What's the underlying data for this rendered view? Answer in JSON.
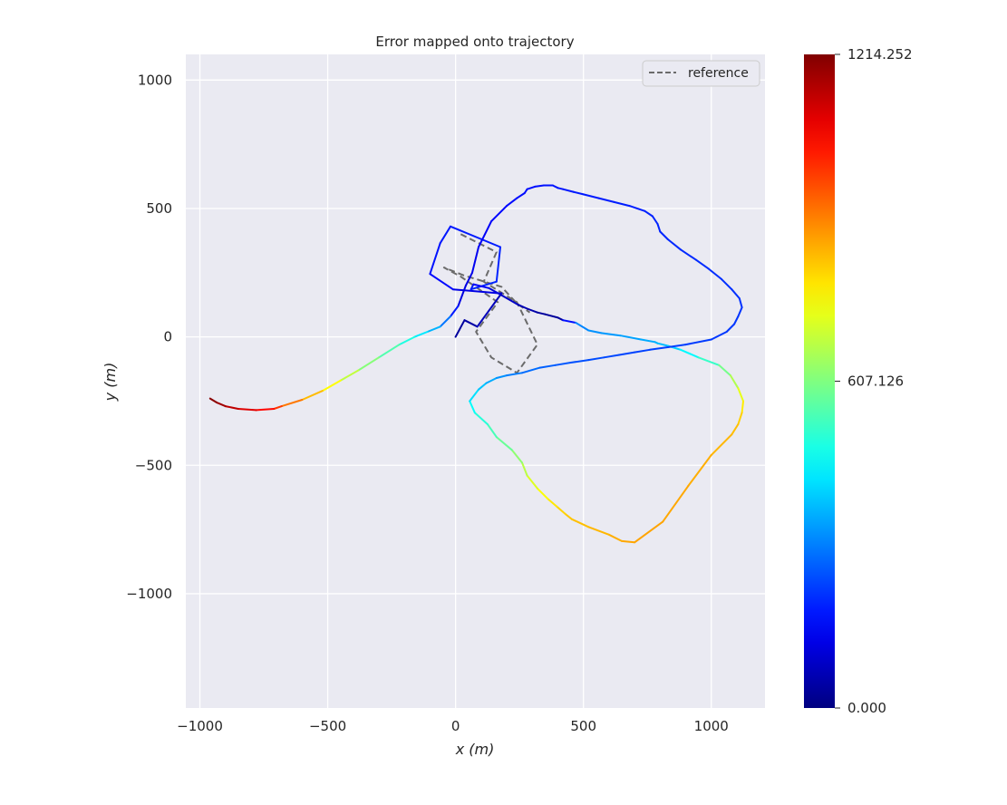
{
  "chart_data": {
    "type": "line",
    "title": "Error mapped onto trajectory",
    "xlabel": "x (m)",
    "ylabel": "y (m)",
    "xlim": [
      -1055,
      1210
    ],
    "ylim": [
      -1445,
      1100
    ],
    "xticks": [
      -1000,
      -500,
      0,
      500,
      1000
    ],
    "xtick_labels": [
      "−1000",
      "−500",
      "0",
      "500",
      "1000"
    ],
    "yticks": [
      1000,
      500,
      0,
      -500,
      -1000
    ],
    "ytick_labels": [
      "1000",
      "500",
      "0",
      "−500",
      "−1000"
    ],
    "grid": true,
    "legend": {
      "placement": "top-right",
      "entries": [
        "reference"
      ]
    },
    "colorbar": {
      "colormap": "jet",
      "min": 0,
      "max": 1214.252,
      "ticks": [
        1214.252,
        607.126,
        0
      ],
      "tick_labels": [
        "1214.252",
        "607.126",
        "0.000"
      ]
    },
    "series": [
      {
        "name": "reference",
        "style": "dashed",
        "color": "#6b6b6b",
        "x": [
          20,
          160,
          110,
          240,
          320,
          240,
          140,
          80,
          165,
          20,
          -45,
          30,
          180,
          240,
          290
        ],
        "y": [
          400,
          330,
          215,
          135,
          -30,
          -140,
          -80,
          20,
          135,
          235,
          270,
          240,
          195,
          130,
          95
        ]
      },
      {
        "name": "",
        "style": "colormapped",
        "x": [
          0,
          35,
          85,
          180,
          170,
          -10,
          -100,
          -60,
          -20,
          175,
          160,
          60,
          70,
          130,
          175,
          245,
          280,
          320,
          350,
          400,
          420,
          470,
          520,
          570,
          645,
          725,
          780,
          790,
          830,
          880,
          950,
          1030,
          1075,
          1105,
          1125,
          1120,
          1105,
          1080,
          1000,
          910,
          810,
          700,
          650,
          600,
          520,
          455,
          430,
          395,
          360,
          320,
          280,
          260,
          220,
          160,
          125,
          75,
          55,
          90,
          120,
          160,
          200,
          260,
          330,
          390,
          450,
          520,
          580,
          640,
          700,
          760,
          830,
          900,
          1000,
          1060,
          1090,
          1105,
          1120,
          1110,
          1080,
          1040,
          990,
          940,
          880,
          830,
          800,
          790,
          770,
          740,
          680,
          620,
          560,
          500,
          460,
          420,
          400,
          380,
          345,
          310,
          280,
          270,
          240,
          200,
          140,
          90,
          65,
          40,
          10,
          -20,
          -60,
          -110,
          -160,
          -220,
          -300,
          -380,
          -450,
          -520,
          -600,
          -680,
          -710,
          -780,
          -850,
          -900,
          -935,
          -960
        ],
        "y": [
          0,
          65,
          40,
          170,
          170,
          185,
          245,
          365,
          430,
          350,
          215,
          185,
          205,
          190,
          165,
          125,
          110,
          95,
          88,
          75,
          65,
          55,
          25,
          15,
          5,
          -10,
          -20,
          -25,
          -35,
          -50,
          -80,
          -110,
          -150,
          -200,
          -250,
          -295,
          -340,
          -380,
          -460,
          -580,
          -720,
          -800,
          -795,
          -770,
          -740,
          -710,
          -690,
          -660,
          -630,
          -590,
          -540,
          -490,
          -440,
          -390,
          -340,
          -295,
          -250,
          -205,
          -180,
          -160,
          -150,
          -140,
          -120,
          -110,
          -100,
          -90,
          -80,
          -70,
          -60,
          -50,
          -40,
          -30,
          -10,
          20,
          50,
          80,
          115,
          150,
          185,
          225,
          265,
          300,
          340,
          380,
          410,
          440,
          470,
          490,
          510,
          525,
          540,
          555,
          565,
          575,
          580,
          590,
          590,
          585,
          575,
          560,
          540,
          510,
          450,
          350,
          250,
          200,
          120,
          80,
          40,
          20,
          0,
          -30,
          -80,
          -130,
          -170,
          -210,
          -245,
          -270,
          -280,
          -285,
          -280,
          -270,
          -255,
          -240
        ],
        "error": [
          40,
          30,
          60,
          80,
          90,
          150,
          170,
          175,
          180,
          185,
          200,
          190,
          170,
          120,
          100,
          70,
          60,
          40,
          35,
          30,
          35,
          300,
          320,
          330,
          340,
          350,
          360,
          370,
          380,
          420,
          480,
          560,
          630,
          700,
          760,
          800,
          830,
          840,
          850,
          860,
          865,
          870,
          860,
          850,
          840,
          830,
          820,
          800,
          770,
          740,
          700,
          650,
          600,
          560,
          520,
          480,
          440,
          400,
          370,
          340,
          310,
          290,
          270,
          260,
          250,
          245,
          240,
          235,
          230,
          228,
          226,
          224,
          220,
          218,
          216,
          214,
          212,
          210,
          208,
          206,
          204,
          202,
          200,
          198,
          196,
          194,
          192,
          190,
          188,
          186,
          184,
          182,
          180,
          178,
          176,
          174,
          172,
          170,
          168,
          166,
          164,
          162,
          150,
          140,
          130,
          120,
          110,
          250,
          330,
          400,
          460,
          520,
          580,
          650,
          720,
          800,
          880,
          960,
          1030,
          1080,
          1120,
          1160,
          1190,
          1214.252
        ]
      }
    ]
  }
}
